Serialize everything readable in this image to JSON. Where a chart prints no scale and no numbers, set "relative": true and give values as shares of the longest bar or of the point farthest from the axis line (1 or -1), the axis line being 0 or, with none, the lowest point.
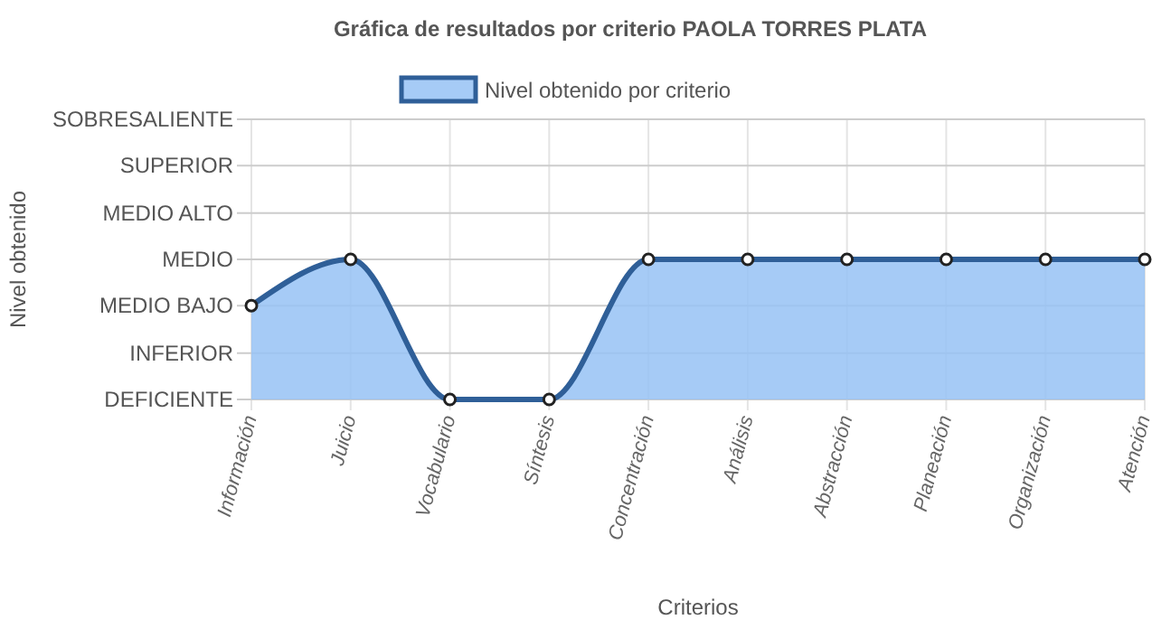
{
  "chart_data": {
    "type": "area",
    "title": "Gráfica de resultados por criterio PAOLA TORRES PLATA",
    "xlabel": "Criterios",
    "annotations": [
      "Nivel obtenido"
    ],
    "categories": [
      "Información",
      "Juicio",
      "Vocabulario",
      "Síntesis",
      "Concentración",
      "Análisis",
      "Abstracción",
      "Planeación",
      "Organización",
      "Atención"
    ],
    "series": [
      {
        "name": "Nivel obtenido por criterio",
        "color": "#2f5f98",
        "values": [
          0.67,
          1,
          0,
          0,
          1,
          1,
          1,
          1,
          1,
          1
        ]
      }
    ],
    "relative": true,
    "ref_lines": [
      {
        "axis": "y",
        "value": 0,
        "label": "DEFICIENTE",
        "color": "#cccccc"
      },
      {
        "axis": "y",
        "value": 0.33,
        "label": "INFERIOR",
        "color": "#cccccc"
      },
      {
        "axis": "y",
        "value": 0.67,
        "label": "MEDIO BAJO",
        "color": "#cccccc"
      },
      {
        "axis": "y",
        "value": 1,
        "label": "MEDIO",
        "color": "#cccccc"
      },
      {
        "axis": "y",
        "value": 1.33,
        "label": "MEDIO ALTO",
        "color": "#cccccc"
      },
      {
        "axis": "y",
        "value": 1.67,
        "label": "SUPERIOR",
        "color": "#cccccc"
      },
      {
        "axis": "y",
        "value": 2,
        "label": "SOBRESALIENTE",
        "color": "#cccccc"
      }
    ],
    "grid": "x",
    "legend": "top",
    "marker": "circle",
    "line_style": "solid"
  }
}
